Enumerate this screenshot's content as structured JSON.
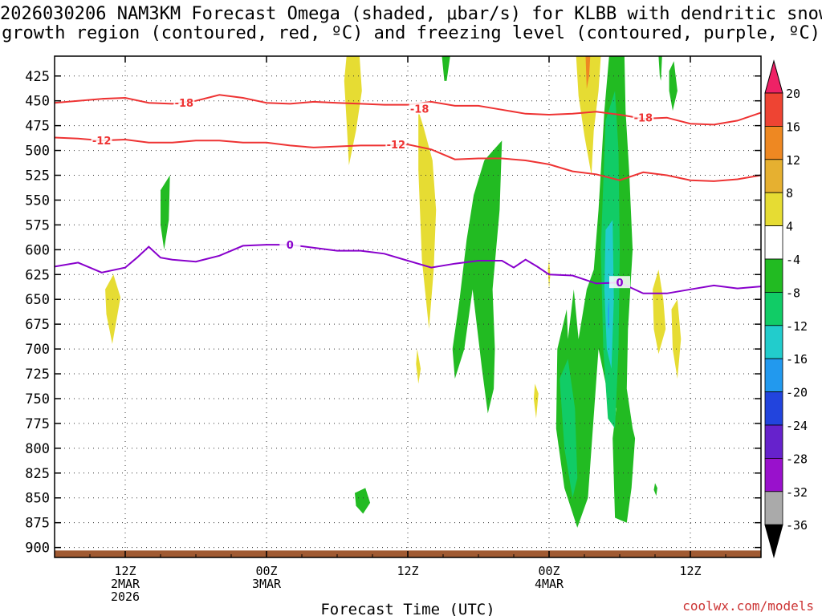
{
  "title": {
    "line1": "2026030206 NAM3KM Forecast Omega (shaded, μbar/s) for KLBB with dendritic snow",
    "line2": "growth region (contoured, red, ºC) and freezing level (contoured, purple, ºC)"
  },
  "footer": {
    "url": "coolwx.com/models"
  },
  "chart_data": {
    "type": "heatmap",
    "xlabel": "Forecast Time (UTC)",
    "ylabel": "",
    "x_ticks": [
      {
        "value": 12,
        "lines": [
          "12Z",
          "2MAR",
          "2026"
        ]
      },
      {
        "value": 24,
        "lines": [
          "00Z",
          "3MAR"
        ]
      },
      {
        "value": 36,
        "lines": [
          "12Z"
        ]
      },
      {
        "value": 48,
        "lines": [
          "00Z",
          "4MAR"
        ]
      },
      {
        "value": 60,
        "lines": [
          "12Z"
        ]
      }
    ],
    "xlim": [
      6,
      66
    ],
    "ylim": [
      910,
      405
    ],
    "y_ticks": [
      425,
      450,
      475,
      500,
      525,
      550,
      575,
      600,
      625,
      650,
      675,
      700,
      725,
      750,
      775,
      800,
      825,
      850,
      875,
      900
    ],
    "grid": true,
    "colorbar": {
      "labels": [
        20,
        16,
        12,
        8,
        4,
        -4,
        -8,
        -12,
        -16,
        -20,
        -24,
        -28,
        -32,
        -36
      ],
      "colors": {
        "c20": "#ee2266",
        "c16": "#ee4433",
        "c12": "#ee8822",
        "c8": "#e6b030",
        "c4": "#e6dc33",
        "c0": "#ffffff",
        "cm4": "#22bb22",
        "cm8": "#11cc66",
        "cm12": "#22cccc",
        "cm16": "#2299ee",
        "cm20": "#2244dd",
        "cm24": "#6622cc",
        "cm28": "#9911cc",
        "cm32": "#aaaaaa",
        "cm36": "#000000"
      }
    },
    "contours": [
      {
        "label": "-18",
        "color": "#ee3333",
        "points": [
          [
            6,
            452
          ],
          [
            8,
            450
          ],
          [
            10,
            448
          ],
          [
            12,
            447
          ],
          [
            14,
            452
          ],
          [
            16,
            453
          ],
          [
            18,
            450
          ],
          [
            20,
            444
          ],
          [
            22,
            447
          ],
          [
            24,
            452
          ],
          [
            26,
            453
          ],
          [
            28,
            451
          ],
          [
            30,
            452
          ],
          [
            32,
            453
          ],
          [
            34,
            454
          ],
          [
            36,
            454
          ],
          [
            38,
            451
          ],
          [
            40,
            455
          ],
          [
            42,
            455
          ],
          [
            44,
            459
          ],
          [
            46,
            463
          ],
          [
            48,
            464
          ],
          [
            50,
            463
          ],
          [
            52,
            461
          ],
          [
            54,
            464
          ],
          [
            56,
            468
          ],
          [
            58,
            467
          ],
          [
            60,
            473
          ],
          [
            62,
            474
          ],
          [
            64,
            470
          ],
          [
            66,
            462
          ]
        ]
      },
      {
        "label": "-12",
        "color": "#ee3333",
        "points": [
          [
            6,
            487
          ],
          [
            8,
            488
          ],
          [
            10,
            490
          ],
          [
            12,
            489
          ],
          [
            14,
            492
          ],
          [
            16,
            492
          ],
          [
            18,
            490
          ],
          [
            20,
            490
          ],
          [
            22,
            492
          ],
          [
            24,
            492
          ],
          [
            26,
            495
          ],
          [
            28,
            497
          ],
          [
            30,
            496
          ],
          [
            32,
            495
          ],
          [
            34,
            495
          ],
          [
            36,
            494
          ],
          [
            38,
            499
          ],
          [
            40,
            509
          ],
          [
            42,
            508
          ],
          [
            44,
            508
          ],
          [
            46,
            510
          ],
          [
            48,
            514
          ],
          [
            50,
            521
          ],
          [
            52,
            524
          ],
          [
            54,
            530
          ],
          [
            56,
            522
          ],
          [
            58,
            525
          ],
          [
            60,
            530
          ],
          [
            62,
            531
          ],
          [
            64,
            529
          ],
          [
            66,
            525
          ]
        ]
      },
      {
        "label": "0",
        "color": "#8800cc",
        "points": [
          [
            6,
            617
          ],
          [
            8,
            613
          ],
          [
            10,
            623
          ],
          [
            12,
            618
          ],
          [
            13,
            608
          ],
          [
            14,
            597
          ],
          [
            15,
            608
          ],
          [
            16,
            610
          ],
          [
            18,
            612
          ],
          [
            20,
            606
          ],
          [
            22,
            596
          ],
          [
            24,
            595
          ],
          [
            26,
            595
          ],
          [
            28,
            598
          ],
          [
            30,
            601
          ],
          [
            32,
            601
          ],
          [
            34,
            604
          ],
          [
            36,
            611
          ],
          [
            38,
            618
          ],
          [
            40,
            614
          ],
          [
            42,
            611
          ],
          [
            44,
            611
          ],
          [
            45,
            618
          ],
          [
            46,
            610
          ],
          [
            47,
            617
          ],
          [
            48,
            625
          ],
          [
            50,
            626
          ],
          [
            52,
            634
          ],
          [
            54,
            633
          ],
          [
            56,
            644
          ],
          [
            58,
            644
          ],
          [
            60,
            640
          ],
          [
            62,
            636
          ],
          [
            64,
            639
          ],
          [
            66,
            637
          ]
        ]
      }
    ],
    "contour_label_positions": [
      {
        "label": "-18",
        "x": 17,
        "y": 452
      },
      {
        "label": "-18",
        "x": 37,
        "y": 458
      },
      {
        "label": "-18",
        "x": 56,
        "y": 467
      },
      {
        "label": "-12",
        "x": 10,
        "y": 490
      },
      {
        "label": "-12",
        "x": 35,
        "y": 494
      },
      {
        "label": "0",
        "x": 26,
        "y": 595
      },
      {
        "label": "0",
        "x": 54,
        "y": 633
      }
    ],
    "shaded_regions": [
      {
        "level": "c4",
        "points": [
          [
            30.8,
            405
          ],
          [
            31.9,
            405
          ],
          [
            32.1,
            440
          ],
          [
            31.6,
            480
          ],
          [
            31.0,
            515
          ],
          [
            30.8,
            470
          ],
          [
            30.6,
            430
          ]
        ]
      },
      {
        "level": "c4",
        "points": [
          [
            10.3,
            640
          ],
          [
            11.0,
            625
          ],
          [
            11.6,
            648
          ],
          [
            10.9,
            695
          ],
          [
            10.4,
            665
          ]
        ]
      },
      {
        "level": "c4",
        "points": [
          [
            36.9,
            460
          ],
          [
            37.3,
            475
          ],
          [
            38.1,
            510
          ],
          [
            38.4,
            560
          ],
          [
            38.2,
            620
          ],
          [
            37.8,
            680
          ],
          [
            37.2,
            610
          ],
          [
            36.9,
            520
          ]
        ]
      },
      {
        "level": "c4",
        "points": [
          [
            36.8,
            700
          ],
          [
            37.1,
            720
          ],
          [
            36.9,
            735
          ],
          [
            36.7,
            715
          ]
        ]
      },
      {
        "level": "c4",
        "points": [
          [
            50.3,
            405
          ],
          [
            52.4,
            405
          ],
          [
            52.2,
            440
          ],
          [
            51.8,
            480
          ],
          [
            51.6,
            525
          ],
          [
            51.0,
            485
          ],
          [
            50.5,
            445
          ]
        ]
      },
      {
        "level": "c12",
        "points": [
          [
            51.1,
            405
          ],
          [
            51.5,
            405
          ],
          [
            51.4,
            425
          ],
          [
            51.2,
            438
          ]
        ]
      },
      {
        "level": "c4",
        "points": [
          [
            48.0,
            610
          ],
          [
            48.1,
            625
          ],
          [
            48.0,
            640
          ],
          [
            47.9,
            620
          ]
        ]
      },
      {
        "level": "c4",
        "points": [
          [
            46.8,
            735
          ],
          [
            47.1,
            745
          ],
          [
            46.9,
            770
          ],
          [
            46.7,
            750
          ]
        ]
      },
      {
        "level": "c4",
        "points": [
          [
            56.8,
            640
          ],
          [
            57.3,
            620
          ],
          [
            57.7,
            650
          ],
          [
            57.9,
            680
          ],
          [
            57.3,
            705
          ],
          [
            56.9,
            680
          ]
        ]
      },
      {
        "level": "c4",
        "points": [
          [
            58.4,
            660
          ],
          [
            58.9,
            650
          ],
          [
            59.2,
            690
          ],
          [
            58.9,
            730
          ],
          [
            58.5,
            700
          ]
        ]
      },
      {
        "level": "cm4",
        "points": [
          [
            15.0,
            540
          ],
          [
            15.8,
            525
          ],
          [
            15.7,
            570
          ],
          [
            15.3,
            600
          ],
          [
            15.0,
            575
          ]
        ]
      },
      {
        "level": "cm4",
        "points": [
          [
            38.9,
            405
          ],
          [
            39.6,
            405
          ],
          [
            39.3,
            430
          ],
          [
            39.1,
            430
          ]
        ]
      },
      {
        "level": "cm4",
        "points": [
          [
            42.5,
            510
          ],
          [
            44.0,
            490
          ],
          [
            43.8,
            560
          ],
          [
            43.2,
            640
          ],
          [
            43.4,
            700
          ],
          [
            43.3,
            740
          ],
          [
            42.8,
            765
          ],
          [
            42.3,
            720
          ],
          [
            41.5,
            640
          ],
          [
            40.8,
            700
          ],
          [
            40.0,
            730
          ],
          [
            39.8,
            700
          ],
          [
            40.4,
            650
          ],
          [
            41.0,
            590
          ],
          [
            41.6,
            545
          ]
        ]
      },
      {
        "level": "cm4",
        "points": [
          [
            31.5,
            845
          ],
          [
            32.4,
            840
          ],
          [
            32.8,
            855
          ],
          [
            32.2,
            866
          ],
          [
            31.6,
            858
          ]
        ]
      },
      {
        "level": "cm4",
        "points": [
          [
            53.1,
            405
          ],
          [
            54.4,
            405
          ],
          [
            54.5,
            460
          ],
          [
            54.8,
            520
          ],
          [
            55.1,
            600
          ],
          [
            54.7,
            680
          ],
          [
            54.6,
            740
          ],
          [
            55.1,
            780
          ],
          [
            55.3,
            790
          ],
          [
            55.0,
            840
          ],
          [
            54.6,
            875
          ],
          [
            53.6,
            870
          ],
          [
            53.4,
            790
          ],
          [
            53.7,
            760
          ],
          [
            52.9,
            740
          ],
          [
            52.2,
            700
          ],
          [
            51.3,
            850
          ],
          [
            50.4,
            880
          ],
          [
            49.3,
            840
          ],
          [
            48.6,
            780
          ],
          [
            48.7,
            700
          ],
          [
            49.5,
            660
          ],
          [
            49.6,
            690
          ],
          [
            50.1,
            640
          ],
          [
            50.5,
            690
          ],
          [
            51.2,
            640
          ],
          [
            51.8,
            620
          ],
          [
            52.2,
            560
          ],
          [
            52.7,
            460
          ]
        ]
      },
      {
        "level": "cm4",
        "points": [
          [
            57.3,
            405
          ],
          [
            57.6,
            405
          ],
          [
            57.5,
            430
          ],
          [
            57.4,
            425
          ]
        ]
      },
      {
        "level": "cm4",
        "points": [
          [
            58.2,
            420
          ],
          [
            58.6,
            410
          ],
          [
            58.9,
            440
          ],
          [
            58.5,
            460
          ],
          [
            58.2,
            440
          ]
        ]
      },
      {
        "level": "cm4",
        "points": [
          [
            57.0,
            835
          ],
          [
            57.2,
            840
          ],
          [
            57.1,
            848
          ],
          [
            56.9,
            842
          ]
        ]
      },
      {
        "level": "cm8",
        "points": [
          [
            52.8,
            470
          ],
          [
            53.6,
            440
          ],
          [
            53.9,
            500
          ],
          [
            54.0,
            600
          ],
          [
            53.9,
            700
          ],
          [
            53.6,
            780
          ],
          [
            53.0,
            770
          ],
          [
            52.6,
            700
          ],
          [
            52.4,
            600
          ]
        ]
      },
      {
        "level": "cm8",
        "points": [
          [
            48.9,
            730
          ],
          [
            49.6,
            710
          ],
          [
            50.2,
            760
          ],
          [
            50.4,
            830
          ],
          [
            50.0,
            850
          ],
          [
            49.3,
            800
          ]
        ]
      },
      {
        "level": "cm12",
        "points": [
          [
            52.8,
            580
          ],
          [
            53.4,
            570
          ],
          [
            53.5,
            650
          ],
          [
            53.3,
            720
          ],
          [
            52.9,
            700
          ],
          [
            52.7,
            640
          ]
        ]
      },
      {
        "level": "cm16",
        "points": [
          [
            53.0,
            660
          ],
          [
            53.1,
            650
          ],
          [
            53.1,
            680
          ],
          [
            53.0,
            675
          ]
        ]
      }
    ],
    "terrain": {
      "top_pressure": 903,
      "color": "#a05a32"
    }
  }
}
